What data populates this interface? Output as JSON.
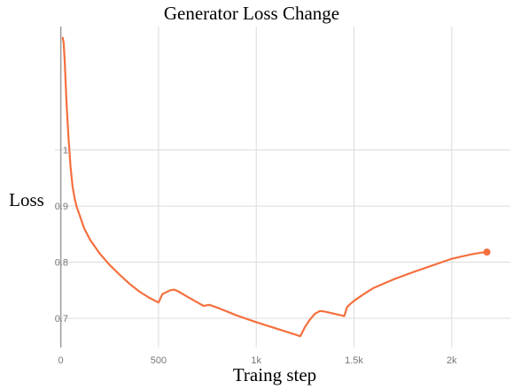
{
  "chart_data": {
    "type": "line",
    "title": "Generator Loss Change",
    "xlabel": "Traing step",
    "ylabel": "Loss",
    "xlim": [
      -30,
      2300
    ],
    "ylim": [
      0.648,
      1.22
    ],
    "x_ticks": [
      {
        "value": 0,
        "label": "0"
      },
      {
        "value": 500,
        "label": "500"
      },
      {
        "value": 1000,
        "label": "1k"
      },
      {
        "value": 1500,
        "label": "1.5k"
      },
      {
        "value": 2000,
        "label": "2k"
      }
    ],
    "y_ticks": [
      {
        "value": 0.7,
        "label": "0.7"
      },
      {
        "value": 0.8,
        "label": "0.8"
      },
      {
        "value": 0.9,
        "label": "0.9"
      },
      {
        "value": 1,
        "label": "1"
      }
    ],
    "grid": true,
    "legend": "none",
    "colors": {
      "line": "#f4703e",
      "grid": "#dcdcdc",
      "zero_line": "#9a9a9a"
    },
    "series": [
      {
        "x": [
          10,
          15,
          20,
          25,
          30,
          40,
          50,
          60,
          70,
          80,
          100,
          120,
          150,
          200,
          250,
          300,
          350,
          400,
          450,
          500,
          520,
          560,
          580,
          600,
          650,
          700,
          730,
          760,
          800,
          900,
          1000,
          1100,
          1200,
          1225,
          1250,
          1275,
          1300,
          1325,
          1350,
          1400,
          1450,
          1465,
          1480,
          1500,
          1550,
          1600,
          1700,
          1800,
          1900,
          1950,
          2000,
          2050,
          2100,
          2150,
          2180
        ],
        "y": [
          1.2,
          1.19,
          1.16,
          1.12,
          1.08,
          1.02,
          0.97,
          0.935,
          0.915,
          0.9,
          0.88,
          0.86,
          0.84,
          0.815,
          0.795,
          0.778,
          0.762,
          0.748,
          0.737,
          0.728,
          0.743,
          0.75,
          0.751,
          0.748,
          0.738,
          0.728,
          0.722,
          0.724,
          0.719,
          0.705,
          0.693,
          0.682,
          0.671,
          0.668,
          0.685,
          0.698,
          0.708,
          0.713,
          0.712,
          0.708,
          0.704,
          0.72,
          0.725,
          0.731,
          0.743,
          0.754,
          0.769,
          0.782,
          0.794,
          0.8,
          0.806,
          0.81,
          0.814,
          0.817,
          0.818
        ]
      }
    ]
  }
}
